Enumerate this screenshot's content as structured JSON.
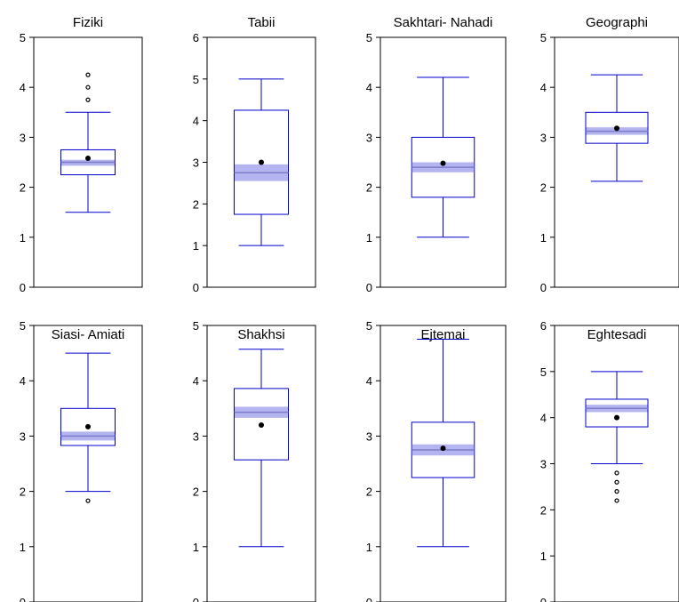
{
  "colors": {
    "box_stroke": "#0000CC",
    "median_band": "#B4B4F0",
    "median_line": "#7C7CC8",
    "mean_dot": "#000000",
    "frame": "#000000",
    "background": "#FFFFFF"
  },
  "chart_data": [
    {
      "type": "box",
      "title": "Fiziki",
      "ylim": [
        0,
        5
      ],
      "yticks": [
        "0",
        "1",
        "2",
        "3",
        "4",
        "5"
      ],
      "q1": 2.25,
      "median": 2.5,
      "q3": 2.75,
      "whisker_low": 1.5,
      "whisker_high": 3.5,
      "mean": 2.58,
      "notch": [
        2.43,
        2.55
      ],
      "outliers": [
        3.75,
        4.0,
        4.25
      ]
    },
    {
      "type": "box",
      "title": "Tabii",
      "ylim": [
        0,
        6
      ],
      "yticks": [
        "0",
        "1",
        "2",
        "3",
        "4",
        "5",
        "6"
      ],
      "q1": 1.75,
      "median": 2.75,
      "q3": 4.25,
      "whisker_low": 1.0,
      "whisker_high": 5.0,
      "mean": 3.0,
      "notch": [
        2.55,
        2.95
      ],
      "outliers": []
    },
    {
      "type": "box",
      "title": "Sakhtari- Nahadi",
      "ylim": [
        0,
        5
      ],
      "yticks": [
        "0",
        "1",
        "2",
        "3",
        "4",
        "5"
      ],
      "q1": 1.8,
      "median": 2.4,
      "q3": 3.0,
      "whisker_low": 1.0,
      "whisker_high": 4.2,
      "mean": 2.48,
      "notch": [
        2.3,
        2.5
      ],
      "outliers": []
    },
    {
      "type": "box",
      "title": "Geographi",
      "ylim": [
        0,
        5
      ],
      "yticks": [
        "0",
        "1",
        "2",
        "3",
        "4",
        "5"
      ],
      "q1": 2.88,
      "median": 3.12,
      "q3": 3.5,
      "whisker_low": 2.12,
      "whisker_high": 4.25,
      "mean": 3.18,
      "notch": [
        3.05,
        3.2
      ],
      "outliers": []
    },
    {
      "type": "box",
      "title": "Siasi- Amiati",
      "ylim": [
        0,
        5
      ],
      "yticks": [
        "0",
        "1",
        "2",
        "3",
        "4",
        "5"
      ],
      "q1": 2.83,
      "median": 3.0,
      "q3": 3.5,
      "whisker_low": 2.0,
      "whisker_high": 4.5,
      "mean": 3.17,
      "notch": [
        2.92,
        3.08
      ],
      "outliers": [
        1.83
      ]
    },
    {
      "type": "box",
      "title": "Shakhsi",
      "ylim": [
        0,
        5
      ],
      "yticks": [
        "0",
        "1",
        "2",
        "3",
        "4",
        "5"
      ],
      "q1": 2.57,
      "median": 3.43,
      "q3": 3.86,
      "whisker_low": 1.0,
      "whisker_high": 4.57,
      "mean": 3.2,
      "notch": [
        3.33,
        3.53
      ],
      "outliers": []
    },
    {
      "type": "box",
      "title": "Ejtemai",
      "ylim": [
        0,
        5
      ],
      "yticks": [
        "0",
        "1",
        "2",
        "3",
        "4",
        "5"
      ],
      "q1": 2.25,
      "median": 2.75,
      "q3": 3.25,
      "whisker_low": 1.0,
      "whisker_high": 4.75,
      "mean": 2.78,
      "notch": [
        2.65,
        2.85
      ],
      "outliers": []
    },
    {
      "type": "box",
      "title": "Eghtesadi",
      "ylim": [
        0,
        6
      ],
      "yticks": [
        "0",
        "1",
        "2",
        "3",
        "4",
        "5",
        "6"
      ],
      "q1": 3.8,
      "median": 4.2,
      "q3": 4.4,
      "whisker_low": 3.0,
      "whisker_high": 5.0,
      "mean": 4.0,
      "notch": [
        4.12,
        4.28
      ],
      "outliers": [
        2.2,
        2.4,
        2.6,
        2.8
      ]
    }
  ]
}
